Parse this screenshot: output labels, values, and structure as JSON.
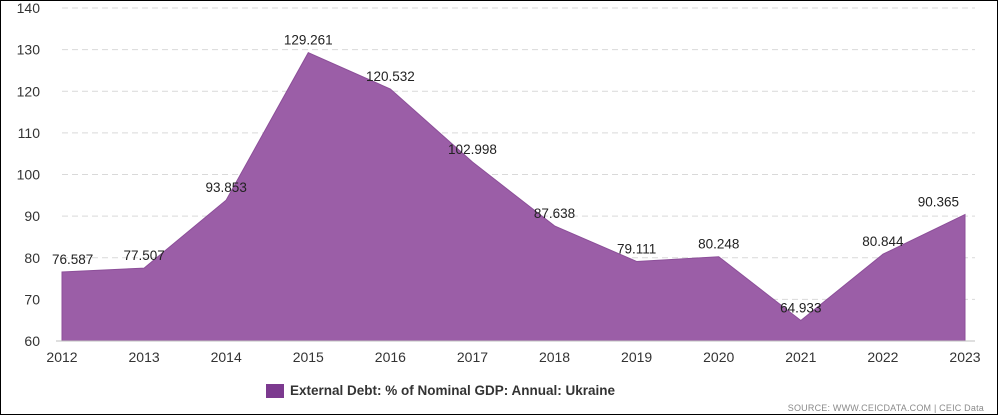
{
  "chart_data": {
    "type": "area",
    "title": "",
    "xlabel": "",
    "ylabel": "",
    "x": [
      "2012",
      "2013",
      "2014",
      "2015",
      "2016",
      "2017",
      "2018",
      "2019",
      "2020",
      "2021",
      "2022",
      "2023"
    ],
    "series": [
      {
        "name": "External Debt: % of Nominal GDP: Annual: Ukraine",
        "values": [
          76.587,
          77.507,
          93.853,
          129.261,
          120.532,
          102.998,
          87.638,
          79.111,
          80.248,
          64.933,
          80.844,
          90.365
        ],
        "labels": [
          "76.587",
          "77.507",
          "93.853",
          "129.261",
          "120.532",
          "102.998",
          "87.638",
          "79.111",
          "80.248",
          "64.933",
          "80.844",
          "90.365"
        ]
      }
    ],
    "yticks": [
      "60",
      "70",
      "80",
      "90",
      "100",
      "110",
      "120",
      "130",
      "140"
    ],
    "ylim": [
      60,
      140
    ],
    "grid": true,
    "legend_position": "bottom",
    "colors": {
      "fill": "#9b5ea7",
      "legend_swatch": "#7c3a8f"
    }
  },
  "legend": {
    "label": "External Debt: % of Nominal GDP: Annual: Ukraine"
  },
  "source": {
    "text": "SOURCE: WWW.CEICDATA.COM | CEIC Data"
  }
}
